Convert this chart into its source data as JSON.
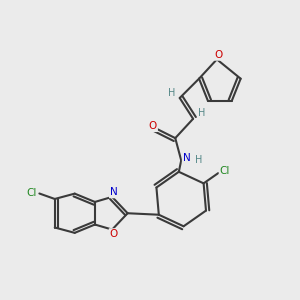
{
  "background_color": "#ebebeb",
  "bond_color": "#3a3a3a",
  "atom_colors": {
    "O": "#cc0000",
    "N": "#0000cc",
    "Cl": "#228822",
    "C": "#3a3a3a",
    "H": "#558888"
  },
  "figsize": [
    3.0,
    3.0
  ],
  "dpi": 100
}
